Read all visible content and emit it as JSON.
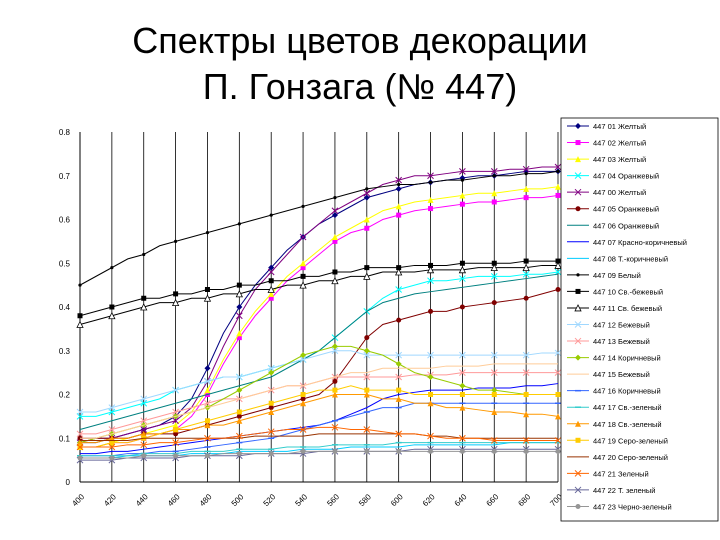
{
  "title_line1": "Спектры цветов декорации",
  "title_line2": "П. Гонзага (№ 447)",
  "chart_data": {
    "type": "line",
    "title": "",
    "x": [
      400,
      410,
      420,
      430,
      440,
      450,
      460,
      470,
      480,
      490,
      500,
      510,
      520,
      530,
      540,
      550,
      560,
      570,
      580,
      590,
      600,
      610,
      620,
      630,
      640,
      650,
      660,
      670,
      680,
      690,
      700
    ],
    "x_ticks": [
      400,
      420,
      440,
      460,
      480,
      500,
      520,
      540,
      560,
      580,
      600,
      620,
      640,
      660,
      680,
      700
    ],
    "ylim": [
      0,
      0.8
    ],
    "y_ticks": [
      "0",
      "0.1",
      "0.2",
      "0.3",
      "0.4",
      "0.5",
      "0.6",
      "0.7",
      "0.8"
    ],
    "grid": "vertical lines at labeled x ticks",
    "legend_position": "right",
    "series": [
      {
        "name": "447 01 Желтый",
        "color": "#000080",
        "marker": "diamond",
        "values": [
          0.09,
          0.09,
          0.1,
          0.11,
          0.12,
          0.13,
          0.15,
          0.19,
          0.26,
          0.34,
          0.4,
          0.45,
          0.49,
          0.53,
          0.56,
          0.59,
          0.61,
          0.63,
          0.65,
          0.66,
          0.67,
          0.68,
          0.685,
          0.69,
          0.695,
          0.7,
          0.7,
          0.705,
          0.71,
          0.71,
          0.71
        ]
      },
      {
        "name": "447 02 Желтый",
        "color": "#ff00ff",
        "marker": "square",
        "values": [
          0.08,
          0.08,
          0.09,
          0.09,
          0.1,
          0.11,
          0.12,
          0.15,
          0.2,
          0.27,
          0.33,
          0.38,
          0.42,
          0.46,
          0.49,
          0.52,
          0.55,
          0.57,
          0.58,
          0.6,
          0.61,
          0.62,
          0.625,
          0.63,
          0.635,
          0.64,
          0.64,
          0.645,
          0.65,
          0.65,
          0.655
        ]
      },
      {
        "name": "447 03 Желтый",
        "color": "#ffff00",
        "marker": "triangle",
        "values": [
          0.08,
          0.08,
          0.09,
          0.1,
          0.11,
          0.12,
          0.13,
          0.16,
          0.21,
          0.28,
          0.34,
          0.39,
          0.43,
          0.47,
          0.5,
          0.53,
          0.56,
          0.58,
          0.6,
          0.62,
          0.63,
          0.64,
          0.645,
          0.65,
          0.655,
          0.66,
          0.66,
          0.665,
          0.67,
          0.67,
          0.675
        ]
      },
      {
        "name": "447 04 Оранжевый",
        "color": "#00ffff",
        "marker": "x",
        "values": [
          0.15,
          0.15,
          0.16,
          0.17,
          0.18,
          0.19,
          0.21,
          0.22,
          0.23,
          0.24,
          0.24,
          0.25,
          0.26,
          0.27,
          0.28,
          0.3,
          0.33,
          0.36,
          0.39,
          0.42,
          0.44,
          0.45,
          0.46,
          0.46,
          0.465,
          0.47,
          0.47,
          0.47,
          0.475,
          0.475,
          0.48
        ]
      },
      {
        "name": "447 00 Желтый",
        "color": "#800080",
        "marker": "x",
        "values": [
          0.09,
          0.1,
          0.1,
          0.11,
          0.12,
          0.13,
          0.14,
          0.17,
          0.23,
          0.31,
          0.38,
          0.44,
          0.48,
          0.52,
          0.56,
          0.59,
          0.62,
          0.64,
          0.66,
          0.68,
          0.69,
          0.7,
          0.7,
          0.705,
          0.71,
          0.71,
          0.71,
          0.715,
          0.715,
          0.72,
          0.72
        ]
      },
      {
        "name": "447 05 Оранжевый",
        "color": "#800000",
        "marker": "circle",
        "values": [
          0.1,
          0.1,
          0.1,
          0.1,
          0.11,
          0.11,
          0.11,
          0.12,
          0.13,
          0.14,
          0.15,
          0.16,
          0.17,
          0.18,
          0.19,
          0.2,
          0.23,
          0.28,
          0.33,
          0.36,
          0.37,
          0.38,
          0.39,
          0.39,
          0.4,
          0.405,
          0.41,
          0.415,
          0.42,
          0.43,
          0.44
        ]
      },
      {
        "name": "447 06 Оранжевый",
        "color": "#008080",
        "marker": "none",
        "values": [
          0.12,
          0.13,
          0.14,
          0.15,
          0.16,
          0.17,
          0.18,
          0.19,
          0.2,
          0.21,
          0.22,
          0.23,
          0.24,
          0.26,
          0.28,
          0.3,
          0.33,
          0.36,
          0.39,
          0.41,
          0.42,
          0.43,
          0.435,
          0.44,
          0.445,
          0.45,
          0.455,
          0.46,
          0.465,
          0.47,
          0.475
        ]
      },
      {
        "name": "447 07 Красно-коричневый",
        "color": "#0000ff",
        "marker": "none",
        "values": [
          0.065,
          0.065,
          0.07,
          0.07,
          0.075,
          0.08,
          0.085,
          0.09,
          0.095,
          0.1,
          0.105,
          0.11,
          0.115,
          0.12,
          0.125,
          0.13,
          0.14,
          0.155,
          0.17,
          0.19,
          0.2,
          0.205,
          0.21,
          0.21,
          0.21,
          0.215,
          0.215,
          0.215,
          0.22,
          0.22,
          0.225
        ]
      },
      {
        "name": "447 08 Т.-коричневый",
        "color": "#00ccff",
        "marker": "none",
        "values": [
          0.055,
          0.055,
          0.055,
          0.06,
          0.06,
          0.06,
          0.06,
          0.065,
          0.065,
          0.065,
          0.07,
          0.07,
          0.07,
          0.07,
          0.075,
          0.075,
          0.075,
          0.08,
          0.08,
          0.08,
          0.08,
          0.085,
          0.085,
          0.085,
          0.085,
          0.085,
          0.085,
          0.09,
          0.09,
          0.09,
          0.09
        ]
      },
      {
        "name": "447 09 Белый",
        "color": "#000000",
        "marker": "dot",
        "values": [
          0.45,
          0.47,
          0.49,
          0.51,
          0.52,
          0.54,
          0.55,
          0.56,
          0.57,
          0.58,
          0.59,
          0.6,
          0.61,
          0.62,
          0.63,
          0.64,
          0.65,
          0.66,
          0.67,
          0.675,
          0.68,
          0.68,
          0.685,
          0.69,
          0.69,
          0.695,
          0.7,
          0.7,
          0.705,
          0.705,
          0.71
        ]
      },
      {
        "name": "447 10 Св.-бежевый",
        "color": "#000000",
        "marker": "square",
        "values": [
          0.38,
          0.39,
          0.4,
          0.41,
          0.42,
          0.42,
          0.43,
          0.43,
          0.44,
          0.44,
          0.45,
          0.45,
          0.46,
          0.46,
          0.47,
          0.47,
          0.48,
          0.48,
          0.49,
          0.49,
          0.49,
          0.495,
          0.495,
          0.495,
          0.5,
          0.5,
          0.5,
          0.5,
          0.505,
          0.505,
          0.505
        ]
      },
      {
        "name": "447 11 Св. бежевый",
        "color": "#000000",
        "marker": "triangle-open",
        "values": [
          0.36,
          0.37,
          0.38,
          0.39,
          0.4,
          0.41,
          0.41,
          0.42,
          0.42,
          0.43,
          0.43,
          0.44,
          0.44,
          0.45,
          0.45,
          0.46,
          0.46,
          0.47,
          0.47,
          0.48,
          0.48,
          0.48,
          0.485,
          0.485,
          0.485,
          0.49,
          0.49,
          0.49,
          0.49,
          0.495,
          0.495
        ]
      },
      {
        "name": "447 12 Бежевый",
        "color": "#a0d8ff",
        "marker": "x",
        "values": [
          0.16,
          0.16,
          0.17,
          0.18,
          0.19,
          0.2,
          0.21,
          0.22,
          0.23,
          0.24,
          0.24,
          0.25,
          0.26,
          0.27,
          0.28,
          0.29,
          0.3,
          0.3,
          0.29,
          0.29,
          0.29,
          0.29,
          0.29,
          0.29,
          0.29,
          0.29,
          0.29,
          0.29,
          0.29,
          0.295,
          0.295
        ]
      },
      {
        "name": "447 13 Бежевый",
        "color": "#ff9999",
        "marker": "x",
        "values": [
          0.11,
          0.11,
          0.12,
          0.13,
          0.14,
          0.15,
          0.16,
          0.17,
          0.18,
          0.19,
          0.19,
          0.2,
          0.21,
          0.22,
          0.22,
          0.23,
          0.24,
          0.24,
          0.24,
          0.24,
          0.24,
          0.245,
          0.245,
          0.245,
          0.25,
          0.25,
          0.25,
          0.25,
          0.25,
          0.25,
          0.25
        ]
      },
      {
        "name": "447 14 Коричневый",
        "color": "#99cc00",
        "marker": "diamond",
        "values": [
          0.09,
          0.1,
          0.11,
          0.12,
          0.13,
          0.14,
          0.15,
          0.16,
          0.17,
          0.19,
          0.21,
          0.23,
          0.25,
          0.27,
          0.29,
          0.3,
          0.31,
          0.31,
          0.3,
          0.29,
          0.27,
          0.25,
          0.24,
          0.23,
          0.22,
          0.21,
          0.21,
          0.205,
          0.2,
          0.2,
          0.2
        ]
      },
      {
        "name": "447 15 Бежевый",
        "color": "#ffcc99",
        "marker": "none",
        "values": [
          0.1,
          0.1,
          0.11,
          0.12,
          0.13,
          0.14,
          0.15,
          0.16,
          0.17,
          0.18,
          0.19,
          0.2,
          0.21,
          0.22,
          0.22,
          0.23,
          0.24,
          0.25,
          0.25,
          0.26,
          0.26,
          0.26,
          0.26,
          0.265,
          0.265,
          0.265,
          0.27,
          0.27,
          0.27,
          0.27,
          0.27
        ]
      },
      {
        "name": "447 16 Коричневый",
        "color": "#3366ff",
        "marker": "dash",
        "values": [
          0.06,
          0.06,
          0.06,
          0.065,
          0.065,
          0.07,
          0.07,
          0.075,
          0.08,
          0.085,
          0.09,
          0.095,
          0.1,
          0.11,
          0.12,
          0.13,
          0.14,
          0.15,
          0.16,
          0.17,
          0.17,
          0.18,
          0.18,
          0.18,
          0.18,
          0.18,
          0.18,
          0.18,
          0.18,
          0.18,
          0.18
        ]
      },
      {
        "name": "447 17 Св.-зеленый",
        "color": "#33cccc",
        "marker": "dash",
        "values": [
          0.06,
          0.06,
          0.06,
          0.06,
          0.065,
          0.065,
          0.065,
          0.07,
          0.07,
          0.07,
          0.075,
          0.075,
          0.075,
          0.08,
          0.08,
          0.08,
          0.085,
          0.085,
          0.085,
          0.085,
          0.09,
          0.09,
          0.09,
          0.09,
          0.09,
          0.09,
          0.09,
          0.09,
          0.09,
          0.09,
          0.09
        ]
      },
      {
        "name": "447 18 Св.-зеленый",
        "color": "#ff9900",
        "marker": "triangle",
        "values": [
          0.09,
          0.09,
          0.1,
          0.1,
          0.11,
          0.11,
          0.12,
          0.12,
          0.13,
          0.13,
          0.14,
          0.15,
          0.16,
          0.17,
          0.18,
          0.19,
          0.2,
          0.2,
          0.2,
          0.19,
          0.19,
          0.18,
          0.18,
          0.17,
          0.17,
          0.165,
          0.16,
          0.16,
          0.155,
          0.155,
          0.15
        ]
      },
      {
        "name": "447 19 Серо-зеленый",
        "color": "#ffcc00",
        "marker": "square",
        "values": [
          0.08,
          0.08,
          0.09,
          0.09,
          0.1,
          0.11,
          0.12,
          0.13,
          0.14,
          0.15,
          0.16,
          0.17,
          0.18,
          0.19,
          0.2,
          0.21,
          0.21,
          0.22,
          0.21,
          0.21,
          0.21,
          0.2,
          0.2,
          0.2,
          0.2,
          0.2,
          0.2,
          0.2,
          0.2,
          0.2,
          0.2
        ]
      },
      {
        "name": "447 20 Серо-зеленый",
        "color": "#993300",
        "marker": "none",
        "values": [
          0.095,
          0.095,
          0.095,
          0.095,
          0.1,
          0.1,
          0.1,
          0.1,
          0.1,
          0.1,
          0.1,
          0.105,
          0.105,
          0.105,
          0.105,
          0.11,
          0.11,
          0.11,
          0.11,
          0.11,
          0.11,
          0.11,
          0.105,
          0.105,
          0.1,
          0.1,
          0.1,
          0.1,
          0.1,
          0.1,
          0.1
        ]
      },
      {
        "name": "447 21 Зеленый",
        "color": "#ff6600",
        "marker": "x",
        "values": [
          0.08,
          0.08,
          0.08,
          0.085,
          0.085,
          0.09,
          0.09,
          0.095,
          0.1,
          0.1,
          0.105,
          0.11,
          0.115,
          0.12,
          0.12,
          0.125,
          0.125,
          0.12,
          0.12,
          0.115,
          0.11,
          0.11,
          0.105,
          0.1,
          0.1,
          0.1,
          0.095,
          0.095,
          0.095,
          0.095,
          0.095
        ]
      },
      {
        "name": "447 22 Т. зеленый",
        "color": "#666699",
        "marker": "x",
        "values": [
          0.05,
          0.05,
          0.05,
          0.055,
          0.055,
          0.055,
          0.055,
          0.06,
          0.06,
          0.06,
          0.06,
          0.065,
          0.065,
          0.065,
          0.065,
          0.07,
          0.07,
          0.07,
          0.07,
          0.07,
          0.07,
          0.075,
          0.075,
          0.075,
          0.075,
          0.075,
          0.075,
          0.075,
          0.075,
          0.075,
          0.075
        ]
      },
      {
        "name": "447 23 Черно-зеленый",
        "color": "#969696",
        "marker": "circle",
        "values": [
          0.055,
          0.055,
          0.055,
          0.055,
          0.06,
          0.06,
          0.06,
          0.06,
          0.06,
          0.065,
          0.065,
          0.065,
          0.065,
          0.065,
          0.07,
          0.07,
          0.07,
          0.07,
          0.07,
          0.07,
          0.07,
          0.07,
          0.07,
          0.07,
          0.07,
          0.07,
          0.07,
          0.07,
          0.07,
          0.07,
          0.07
        ]
      }
    ]
  }
}
